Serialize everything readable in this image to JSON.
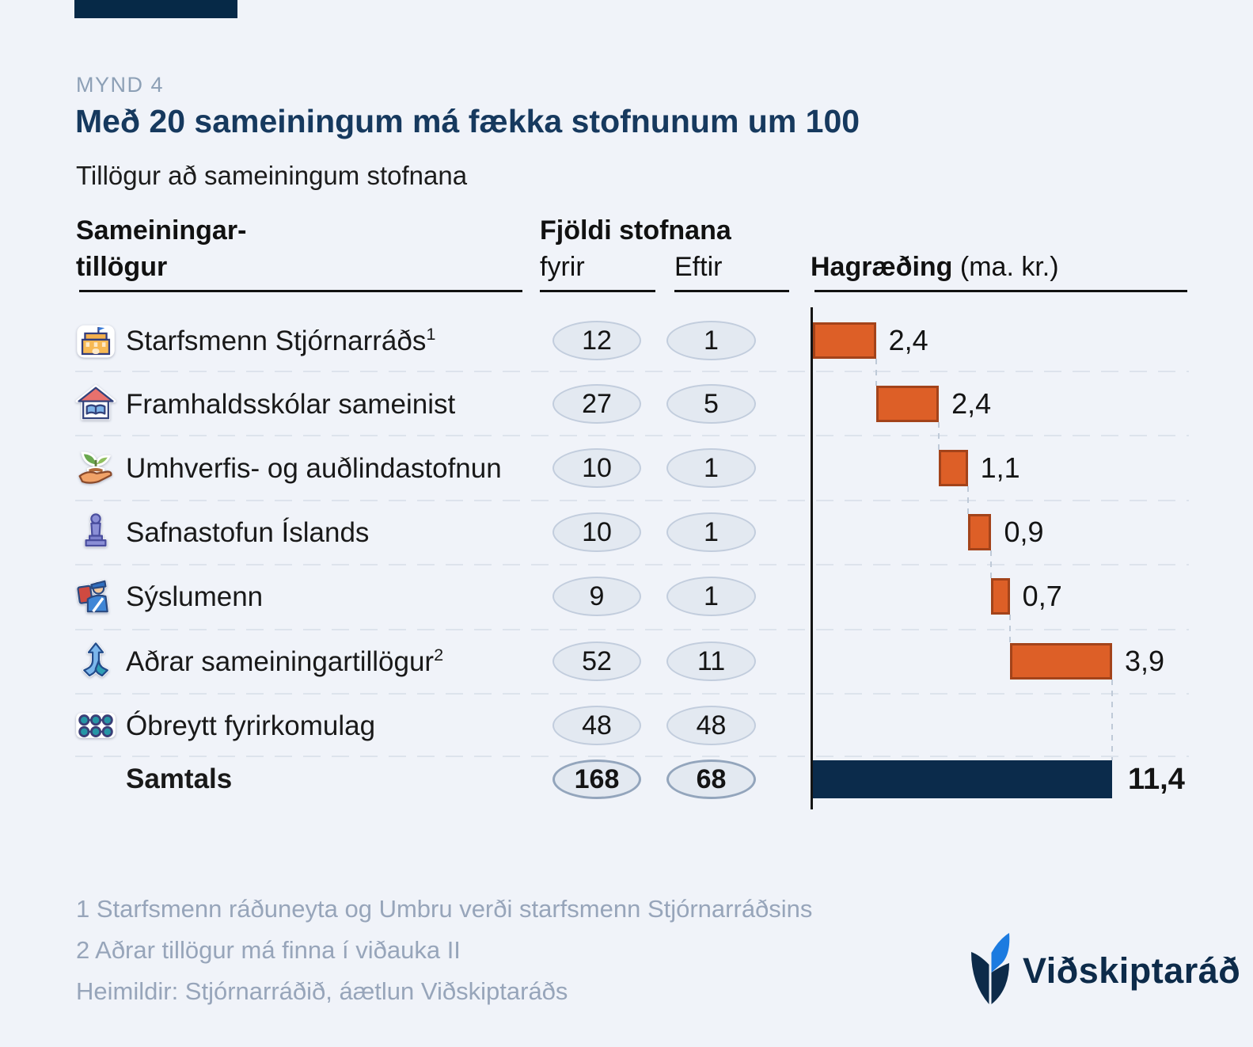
{
  "figure": {
    "tag": "MYND 4",
    "title": "Með 20 sameiningum má fækka stofnunum um 100",
    "subtitle": "Tillögur að sameiningum stofnana"
  },
  "table": {
    "col1_header_line1": "Sameiningar-",
    "col1_header_line2": "tillögur",
    "group_header": "Fjöldi stofnana",
    "col_fyrir": "fyrir",
    "col_eftir": "Eftir",
    "col_hagraeding": "Hagræðing",
    "col_hagraeding_unit": " (ma. kr.)",
    "rows": [
      {
        "icon": "government-building",
        "label": "Starfsmenn Stjórnarráðs",
        "sup": "1",
        "fyrir": "12",
        "eftir": "1"
      },
      {
        "icon": "school-house",
        "label": "Framhaldsskólar sameinist",
        "sup": "",
        "fyrir": "27",
        "eftir": "5"
      },
      {
        "icon": "seedling-hand",
        "label": "Umhverfis- og auðlindastofnun",
        "sup": "",
        "fyrir": "10",
        "eftir": "1"
      },
      {
        "icon": "statue",
        "label": "Safnastofun Íslands",
        "sup": "",
        "fyrir": "10",
        "eftir": "1"
      },
      {
        "icon": "officer",
        "label": "Sýslumenn",
        "sup": "",
        "fyrir": "9",
        "eftir": "1"
      },
      {
        "icon": "merge-arrows",
        "label": "Aðrar sameiningartillögur",
        "sup": "2",
        "fyrir": "52",
        "eftir": "11"
      },
      {
        "icon": "dots-grid",
        "label": "Óbreytt fyrirkomulag",
        "sup": "",
        "fyrir": "48",
        "eftir": "48"
      }
    ],
    "total_row": {
      "label": "Samtals",
      "fyrir": "168",
      "eftir": "68"
    }
  },
  "chart_data": {
    "type": "bar",
    "subtype": "waterfall",
    "orientation": "horizontal",
    "title": "Hagræðing (ma. kr.)",
    "categories": [
      "Starfsmenn Stjórnarráðs",
      "Framhaldsskólar sameinist",
      "Umhverfis- og auðlindastofnun",
      "Safnastofun Íslands",
      "Sýslumenn",
      "Aðrar sameiningartillögur",
      "Óbreytt fyrirkomulag"
    ],
    "values": [
      2.4,
      2.4,
      1.1,
      0.9,
      0.7,
      3.9,
      0
    ],
    "value_labels": [
      "2,4",
      "2,4",
      "1,1",
      "0,9",
      "0,7",
      "3,9",
      ""
    ],
    "total_value": 11.4,
    "total_label": "11,4",
    "total_category": "Samtals",
    "xlim": [
      0,
      14.3
    ],
    "grid": false,
    "bar_color": "#dd5f27",
    "bar_border_color": "#a3431a",
    "total_bar_color": "#0b2b4b"
  },
  "footnotes": {
    "line1": "1 Starfsmenn ráðuneyta og Umbru verði starfsmenn Stjórnarráðsins",
    "line2": "2 Aðrar tillögur má finna í viðauka II",
    "line3": "Heimildir: Stjórnarráðið, áætlun Viðskiptaráðs"
  },
  "logo": {
    "text": "Viðskiptaráð",
    "accent_color": "#1c7be0",
    "navy_color": "#0d2b4a"
  }
}
